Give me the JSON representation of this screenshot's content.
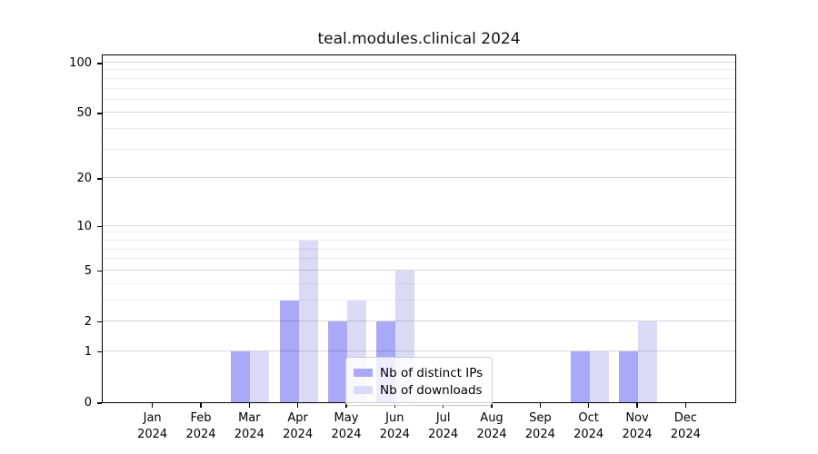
{
  "title": "teal.modules.clinical 2024",
  "chart_data": {
    "type": "bar",
    "title": "teal.modules.clinical 2024",
    "categories": [
      "Jan 2024",
      "Feb 2024",
      "Mar 2024",
      "Apr 2024",
      "May 2024",
      "Jun 2024",
      "Jul 2024",
      "Aug 2024",
      "Sep 2024",
      "Oct 2024",
      "Nov 2024",
      "Dec 2024"
    ],
    "series": [
      {
        "name": "Nb of distinct IPs",
        "color": "#a9a9f8",
        "values": [
          0,
          0,
          1,
          3,
          2,
          2,
          0,
          0,
          0,
          1,
          1,
          0
        ]
      },
      {
        "name": "Nb of downloads",
        "color": "#dbdbf8",
        "values": [
          0,
          0,
          1,
          8,
          3,
          5,
          0,
          0,
          0,
          1,
          2,
          0
        ]
      }
    ],
    "xlabel": "",
    "ylabel": "",
    "y_axis": {
      "scale": "log1p",
      "tick_values": [
        0,
        1,
        2,
        5,
        10,
        20,
        50,
        100
      ],
      "tick_labels": [
        "0",
        "1",
        "2",
        "5",
        "10",
        "20",
        "50",
        "100"
      ],
      "minor_gridline_values": [
        3,
        4,
        6,
        7,
        8,
        9,
        30,
        40,
        60,
        70,
        80,
        90
      ],
      "ylim": [
        0,
        113
      ]
    },
    "grid": true,
    "legend": {
      "position": "inside-bottom-center",
      "entries": [
        "Nb of distinct IPs",
        "Nb of downloads"
      ]
    }
  }
}
